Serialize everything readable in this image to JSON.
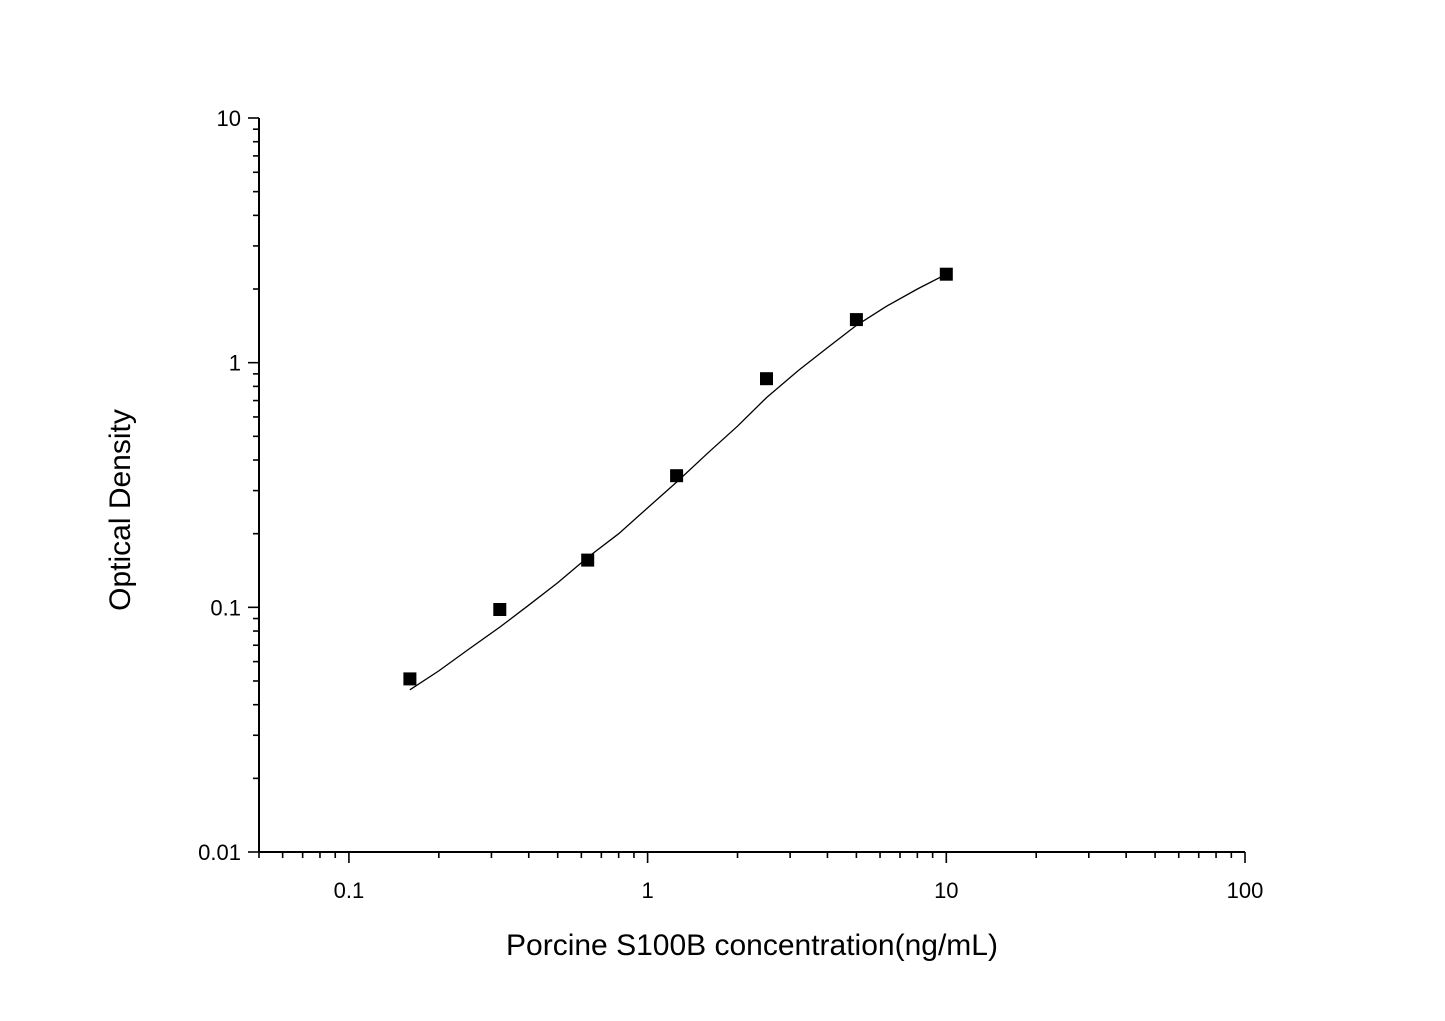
{
  "chart_data": {
    "type": "scatter",
    "title": "",
    "xlabel": "Porcine S100B concentration(ng/mL)",
    "ylabel": "Optical Density",
    "x_scale": "log",
    "y_scale": "log",
    "xlim": [
      0.05,
      100
    ],
    "ylim": [
      0.01,
      10
    ],
    "x_ticks": [
      {
        "value": 0.1,
        "label": "0.1"
      },
      {
        "value": 1,
        "label": "1"
      },
      {
        "value": 10,
        "label": "10"
      },
      {
        "value": 100,
        "label": "100"
      }
    ],
    "y_ticks": [
      {
        "value": 0.01,
        "label": "0.01"
      },
      {
        "value": 0.1,
        "label": "0.1"
      },
      {
        "value": 1,
        "label": "1"
      },
      {
        "value": 10,
        "label": "10"
      }
    ],
    "grid": false,
    "legend": "none",
    "series": [
      {
        "kind": "points",
        "marker": "square",
        "color": "#000000",
        "x": [
          0.16,
          0.32,
          0.63,
          1.25,
          2.5,
          5,
          10
        ],
        "y": [
          0.051,
          0.098,
          0.156,
          0.345,
          0.86,
          1.5,
          2.3
        ]
      },
      {
        "kind": "fit-line",
        "color": "#000000",
        "x": [
          0.16,
          0.2,
          0.25,
          0.32,
          0.4,
          0.5,
          0.63,
          0.8,
          1,
          1.25,
          1.6,
          2,
          2.5,
          3.2,
          4,
          5,
          6.3,
          8,
          10
        ],
        "y": [
          0.046,
          0.055,
          0.067,
          0.083,
          0.102,
          0.126,
          0.16,
          0.2,
          0.255,
          0.325,
          0.43,
          0.55,
          0.72,
          0.93,
          1.15,
          1.42,
          1.7,
          2.0,
          2.3
        ]
      }
    ]
  }
}
